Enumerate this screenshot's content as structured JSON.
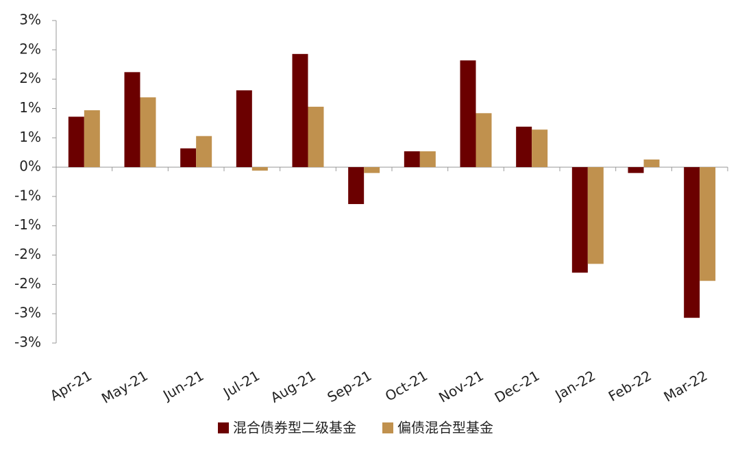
{
  "chart_data": {
    "type": "bar",
    "categories": [
      "Apr-21",
      "May-21",
      "Jun-21",
      "Jul-21",
      "Aug-21",
      "Sep-21",
      "Oct-21",
      "Nov-21",
      "Dec-21",
      "Jan-22",
      "Feb-22",
      "Mar-22"
    ],
    "series": [
      {
        "name": "混合债券型二级基金",
        "color": "#6b0000",
        "values": [
          0.86,
          1.62,
          0.32,
          1.31,
          1.93,
          -0.63,
          0.27,
          1.82,
          0.69,
          -1.8,
          -0.1,
          -2.57
        ]
      },
      {
        "name": "偏债混合型基金",
        "color": "#c0914e",
        "values": [
          0.97,
          1.19,
          0.53,
          -0.06,
          1.03,
          -0.1,
          0.27,
          0.92,
          0.64,
          -1.65,
          0.13,
          -1.94
        ]
      }
    ],
    "ylim": [
      -3,
      2.5
    ],
    "yticks": [
      {
        "value": 2.5,
        "label": "3%"
      },
      {
        "value": 2,
        "label": "2%"
      },
      {
        "value": 1.5,
        "label": "2%"
      },
      {
        "value": 1,
        "label": "1%"
      },
      {
        "value": 0.5,
        "label": "1%"
      },
      {
        "value": 0,
        "label": "0%"
      },
      {
        "value": -0.5,
        "label": "-1%"
      },
      {
        "value": -1,
        "label": "-1%"
      },
      {
        "value": -1.5,
        "label": "-2%"
      },
      {
        "value": -2,
        "label": "-2%"
      },
      {
        "value": -2.5,
        "label": "-3%"
      },
      {
        "value": -3,
        "label": "-3%"
      }
    ],
    "legend": "bottom"
  }
}
